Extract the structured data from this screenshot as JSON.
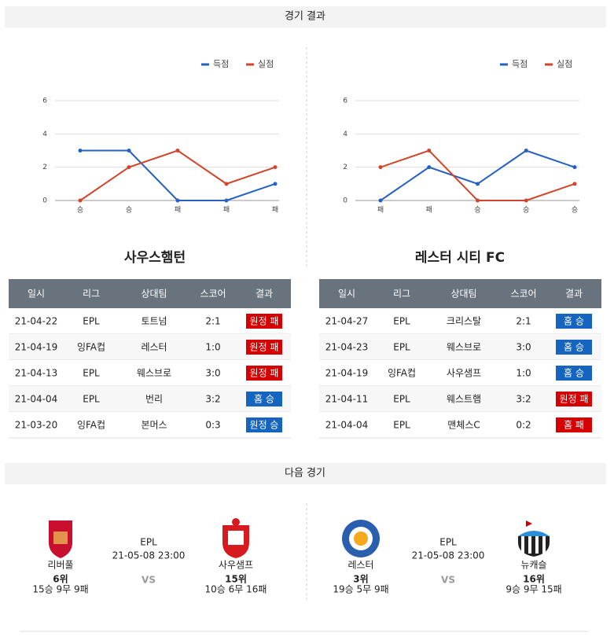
{
  "header": {
    "results_title": "경기 결과",
    "next_title": "다음 경기"
  },
  "chart_data": [
    {
      "type": "line",
      "categories": [
        "승",
        "승",
        "패",
        "패",
        "패"
      ],
      "series": [
        {
          "name": "득점",
          "color": "#2561c2",
          "values": [
            3,
            3,
            0,
            0,
            1
          ]
        },
        {
          "name": "실점",
          "color": "#d2452a",
          "values": [
            0,
            2,
            3,
            1,
            2
          ]
        }
      ],
      "ylim": [
        0,
        6
      ],
      "yticks": [
        0,
        2,
        4,
        6
      ],
      "grid": true,
      "legend": "top-right"
    },
    {
      "type": "line",
      "categories": [
        "패",
        "패",
        "승",
        "승",
        "승"
      ],
      "series": [
        {
          "name": "득점",
          "color": "#2561c2",
          "values": [
            0,
            2,
            1,
            3,
            2
          ]
        },
        {
          "name": "실점",
          "color": "#d2452a",
          "values": [
            2,
            3,
            0,
            0,
            1
          ]
        }
      ],
      "ylim": [
        0,
        6
      ],
      "yticks": [
        0,
        2,
        4,
        6
      ],
      "grid": true,
      "legend": "top-right"
    }
  ],
  "teams": [
    {
      "name": "사우스햄턴",
      "table": {
        "columns": [
          "일시",
          "리그",
          "상대팀",
          "스코어",
          "결과"
        ],
        "rows": [
          [
            "21-04-22",
            "EPL",
            "토트넘",
            "2:1",
            "원정 패"
          ],
          [
            "21-04-19",
            "잉FA컵",
            "레스터",
            "1:0",
            "원정 패"
          ],
          [
            "21-04-13",
            "EPL",
            "웨스브로",
            "3:0",
            "원정 패"
          ],
          [
            "21-04-04",
            "EPL",
            "번리",
            "3:2",
            "홈 승"
          ],
          [
            "21-03-20",
            "잉FA컵",
            "본머스",
            "0:3",
            "원정 승"
          ]
        ],
        "result_colors": [
          "#d50000",
          "#d50000",
          "#d50000",
          "#1565c0",
          "#1565c0"
        ]
      }
    },
    {
      "name": "레스터 시티 FC",
      "table": {
        "columns": [
          "일시",
          "리그",
          "상대팀",
          "스코어",
          "결과"
        ],
        "rows": [
          [
            "21-04-27",
            "EPL",
            "크리스탈",
            "2:1",
            "홈 승"
          ],
          [
            "21-04-23",
            "EPL",
            "웨스브로",
            "3:0",
            "홈 승"
          ],
          [
            "21-04-19",
            "잉FA컵",
            "사우샘프",
            "1:0",
            "홈 승"
          ],
          [
            "21-04-11",
            "EPL",
            "웨스트햄",
            "3:2",
            "원정 패"
          ],
          [
            "21-04-04",
            "EPL",
            "맨체스C",
            "0:2",
            "홈 패"
          ]
        ],
        "result_colors": [
          "#1565c0",
          "#1565c0",
          "#1565c0",
          "#d50000",
          "#d50000"
        ]
      }
    }
  ],
  "next_matches": [
    {
      "league": "EPL",
      "datetime": "21-05-08 23:00",
      "vs": "VS",
      "home": {
        "name": "리버풀",
        "rank": "6위",
        "record": "15승 9무 9패"
      },
      "away": {
        "name": "사우샘프",
        "rank": "15위",
        "record": "10승 6무 16패"
      }
    },
    {
      "league": "EPL",
      "datetime": "21-05-08 23:00",
      "vs": "VS",
      "home": {
        "name": "레스터",
        "rank": "3위",
        "record": "19승 5무 9패"
      },
      "away": {
        "name": "뉴캐슬",
        "rank": "16위",
        "record": "9승 9무 15패"
      }
    }
  ]
}
